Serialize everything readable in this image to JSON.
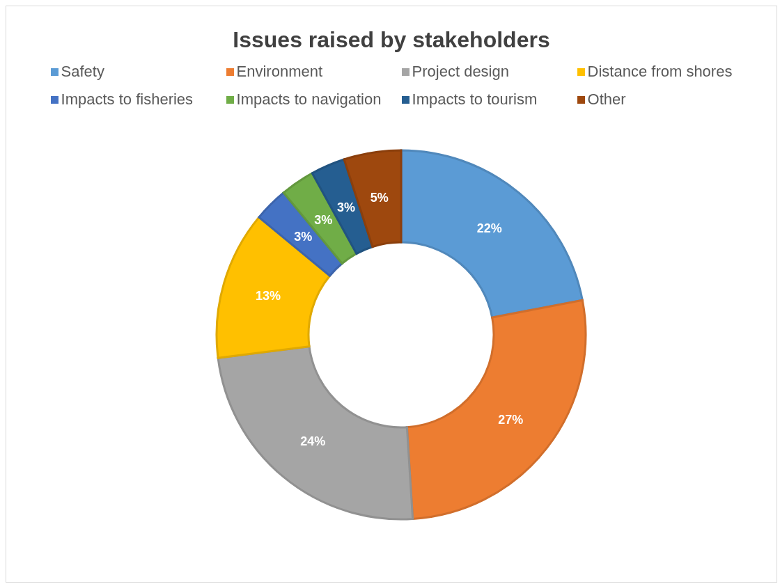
{
  "chart_data": {
    "type": "donut",
    "title": "Issues raised by stakeholders",
    "categories": [
      "Safety",
      "Environment",
      "Project design",
      "Distance from shores",
      "Impacts to fisheries",
      "Impacts to navigation",
      "Impacts to tourism",
      "Other"
    ],
    "values": [
      22,
      27,
      24,
      13,
      3,
      3,
      3,
      5
    ],
    "value_labels": [
      "22%",
      "27%",
      "24%",
      "13%",
      "3%",
      "3%",
      "3%",
      "5%"
    ],
    "colors": [
      "#5b9bd5",
      "#ed7d31",
      "#a5a5a5",
      "#ffc000",
      "#4472c4",
      "#70ad47",
      "#255e91",
      "#9e480e"
    ],
    "legend": "top"
  }
}
